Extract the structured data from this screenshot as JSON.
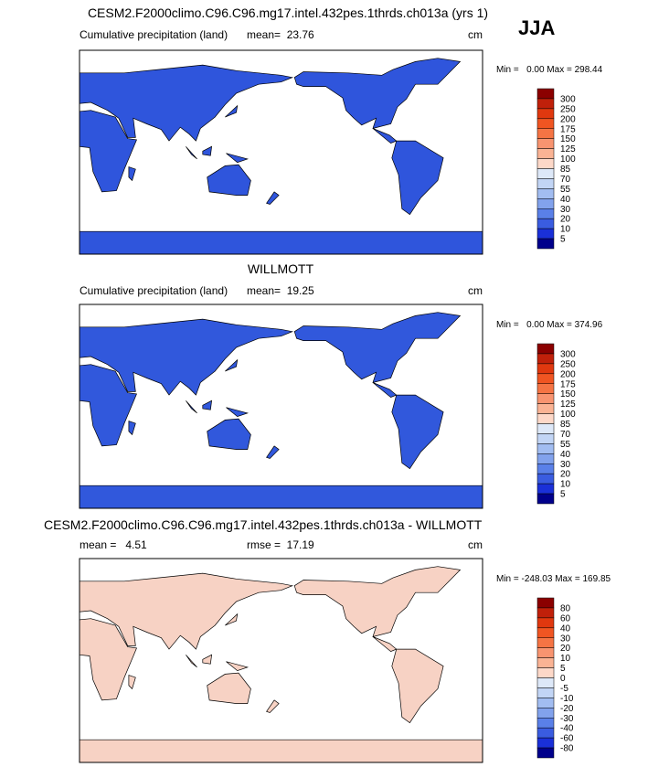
{
  "figure_title": "JJA",
  "panels": [
    {
      "title": "CESM2.F2000climo.C96.C96.mg17.intel.432pes.1thrds.ch013a (yrs 1)",
      "variable": "Cumulative precipitation (land)",
      "mean": "mean=  23.76",
      "units": "cm",
      "min_max": "Min =   0.00 Max = 298.44",
      "land_color": "#2f55dc",
      "levels": [
        "300",
        "250",
        "200",
        "175",
        "150",
        "125",
        "100",
        "85",
        "70",
        "55",
        "40",
        "30",
        "20",
        "10",
        "5"
      ],
      "colors": [
        "#8b0000",
        "#c0200a",
        "#e0380f",
        "#f05522",
        "#f57444",
        "#f89470",
        "#fab394",
        "#fdd8c8",
        "#dde8f8",
        "#c2d5f5",
        "#a2bdf1",
        "#82a2ec",
        "#5a80e8",
        "#3a5ce0",
        "#1a30d8",
        "#00008b"
      ]
    },
    {
      "title": "WILLMOTT",
      "variable": "Cumulative precipitation (land)",
      "mean": "mean=  19.25",
      "units": "cm",
      "min_max": "Min =   0.00 Max = 374.96",
      "land_color": "#3158dc",
      "levels": [
        "300",
        "250",
        "200",
        "175",
        "150",
        "125",
        "100",
        "85",
        "70",
        "55",
        "40",
        "30",
        "20",
        "10",
        "5"
      ],
      "colors": [
        "#8b0000",
        "#c0200a",
        "#e0380f",
        "#f05522",
        "#f57444",
        "#f89470",
        "#fab394",
        "#fdd8c8",
        "#dde8f8",
        "#c2d5f5",
        "#a2bdf1",
        "#82a2ec",
        "#5a80e8",
        "#3a5ce0",
        "#1a30d8",
        "#00008b"
      ]
    },
    {
      "title": "CESM2.F2000climo.C96.C96.mg17.intel.432pes.1thrds.ch013a - WILLMOTT",
      "mean": "mean =   4.51",
      "rmse": "rmse =  17.19",
      "units": "cm",
      "min_max": "Min = -248.03 Max = 169.85",
      "land_color": "#f7d2c4",
      "levels": [
        "80",
        "60",
        "40",
        "30",
        "20",
        "10",
        "5",
        "0",
        "-5",
        "-10",
        "-20",
        "-30",
        "-40",
        "-60",
        "-80"
      ],
      "colors": [
        "#8b0000",
        "#c0200a",
        "#e0380f",
        "#f05522",
        "#f57444",
        "#f89470",
        "#fab394",
        "#fdd8c8",
        "#dde8f8",
        "#c2d5f5",
        "#a2bdf1",
        "#82a2ec",
        "#5a80e8",
        "#3a5ce0",
        "#1a30d8",
        "#00008b"
      ]
    }
  ]
}
